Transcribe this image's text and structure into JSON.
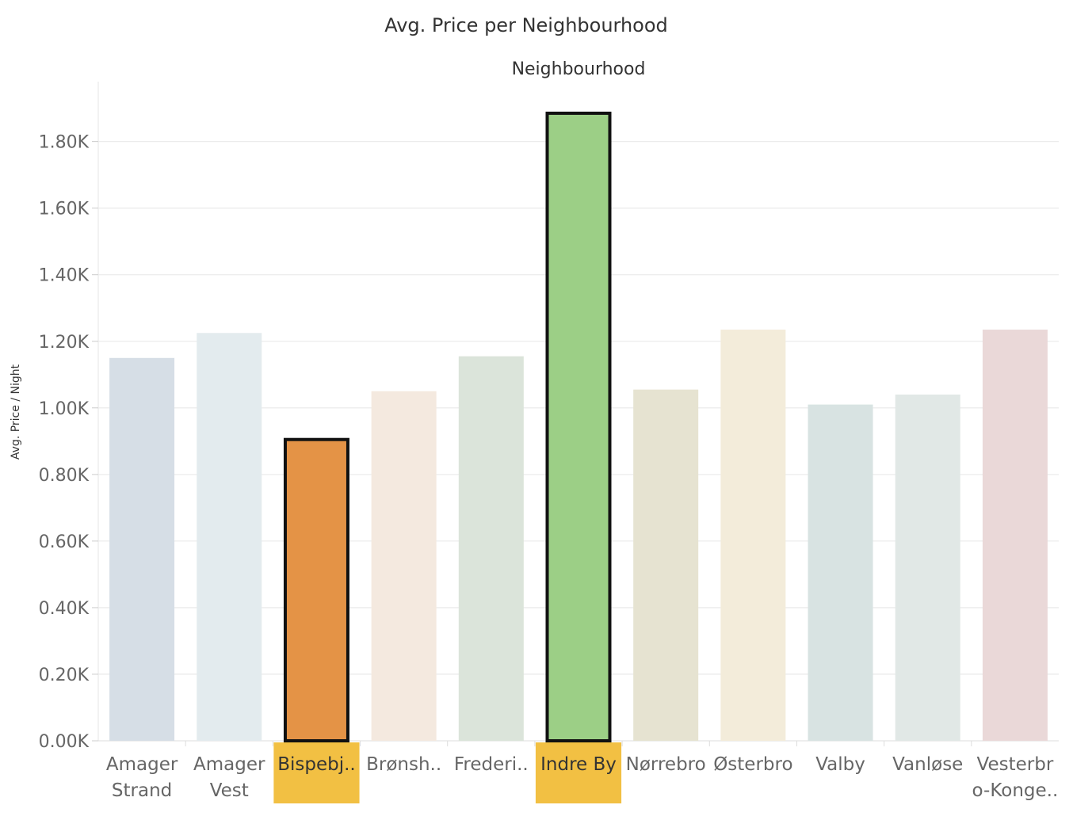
{
  "chart_data": {
    "type": "bar",
    "title": "Avg. Price per Neighbourhood",
    "column_header": "Neighbourhood",
    "ylabel": "Avg. Price / Night",
    "xlabel": "",
    "ylim": [
      0,
      1980
    ],
    "yticks": [
      {
        "value": 0,
        "label": "0.00K"
      },
      {
        "value": 200,
        "label": "0.20K"
      },
      {
        "value": 400,
        "label": "0.40K"
      },
      {
        "value": 600,
        "label": "0.60K"
      },
      {
        "value": 800,
        "label": "0.80K"
      },
      {
        "value": 1000,
        "label": "1.00K"
      },
      {
        "value": 1200,
        "label": "1.20K"
      },
      {
        "value": 1400,
        "label": "1.40K"
      },
      {
        "value": 1600,
        "label": "1.60K"
      },
      {
        "value": 1800,
        "label": "1.80K"
      }
    ],
    "grid": true,
    "categories": [
      {
        "label_lines": [
          "Amager",
          "Strand"
        ],
        "value": 1150,
        "color": "#d6dee6",
        "selected": false
      },
      {
        "label_lines": [
          "Amager",
          "Vest"
        ],
        "value": 1225,
        "color": "#e3ebee",
        "selected": false
      },
      {
        "label_lines": [
          "Bispebj.."
        ],
        "value": 905,
        "color": "#e49346",
        "selected": true
      },
      {
        "label_lines": [
          "Brønsh.."
        ],
        "value": 1050,
        "color": "#f4e9df",
        "selected": false
      },
      {
        "label_lines": [
          "Frederi.."
        ],
        "value": 1155,
        "color": "#dbe4da",
        "selected": false
      },
      {
        "label_lines": [
          "Indre By"
        ],
        "value": 1885,
        "color": "#9ccf86",
        "selected": true
      },
      {
        "label_lines": [
          "Nørrebro"
        ],
        "value": 1055,
        "color": "#e6e3d1",
        "selected": false
      },
      {
        "label_lines": [
          "Østerbro"
        ],
        "value": 1235,
        "color": "#f3ecda",
        "selected": false
      },
      {
        "label_lines": [
          "Valby"
        ],
        "value": 1010,
        "color": "#d8e3e2",
        "selected": false
      },
      {
        "label_lines": [
          "Vanløse"
        ],
        "value": 1040,
        "color": "#e1e8e6",
        "selected": false
      },
      {
        "label_lines": [
          "Vesterbr",
          "o-Konge.."
        ],
        "value": 1235,
        "color": "#ead8d8",
        "selected": false
      }
    ],
    "colors": {
      "selection_label_bg": "#f2c043",
      "selection_border": "#111111",
      "gridline": "#ececec"
    }
  }
}
